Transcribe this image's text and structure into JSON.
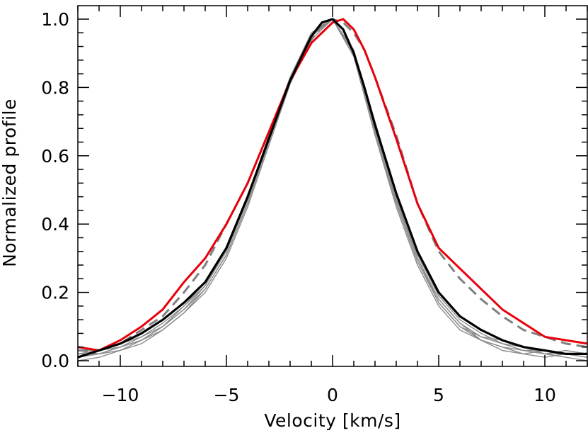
{
  "chart_data": {
    "type": "line",
    "xlabel": "Velocity [km/s]",
    "ylabel": "Normalized profile",
    "xlim": [
      -12,
      12
    ],
    "ylim": [
      0,
      1
    ],
    "x_ticks": [
      -10,
      -5,
      0,
      5,
      10
    ],
    "x_tick_labels": [
      "−10",
      "−5",
      "0",
      "5",
      "10"
    ],
    "y_ticks": [
      0,
      0.2,
      0.4,
      0.6,
      0.8,
      1.0
    ],
    "y_tick_labels": [
      "0.0",
      "0.2",
      "0.4",
      "0.6",
      "0.8",
      "1.0"
    ],
    "grid": false,
    "legend": "none",
    "colors": {
      "red": "#e8000b",
      "black": "#000000",
      "gray": "#8c8c8c",
      "dashed": "#808080"
    },
    "series": [
      {
        "style": "red-solid",
        "x": [
          -12,
          -11,
          -10,
          -9,
          -8,
          -7,
          -6,
          -5,
          -4,
          -3,
          -2,
          -1,
          -0.5,
          0,
          0.5,
          1,
          1.5,
          2,
          3,
          4,
          5,
          6,
          7,
          8,
          9,
          10,
          11,
          12
        ],
        "y": [
          0.04,
          0.03,
          0.06,
          0.1,
          0.15,
          0.23,
          0.3,
          0.4,
          0.52,
          0.67,
          0.82,
          0.93,
          0.96,
          0.99,
          1.0,
          0.97,
          0.91,
          0.83,
          0.65,
          0.46,
          0.33,
          0.27,
          0.21,
          0.15,
          0.11,
          0.07,
          0.06,
          0.05
        ]
      },
      {
        "style": "gray-dashed",
        "x": [
          -12,
          -11,
          -10,
          -9,
          -8,
          -7,
          -6,
          -5,
          -4,
          -3,
          -2,
          -1,
          -0.5,
          0,
          0.5,
          1,
          1.5,
          2,
          3,
          4,
          5,
          6,
          7,
          8,
          9,
          10,
          11,
          12
        ],
        "y": [
          0.03,
          0.03,
          0.05,
          0.09,
          0.13,
          0.2,
          0.28,
          0.4,
          0.52,
          0.67,
          0.82,
          0.94,
          0.98,
          1.0,
          0.99,
          0.96,
          0.91,
          0.83,
          0.66,
          0.46,
          0.32,
          0.24,
          0.18,
          0.13,
          0.09,
          0.07,
          0.05,
          0.04
        ]
      },
      {
        "style": "black-solid",
        "x": [
          -12,
          -11,
          -10,
          -9,
          -8,
          -7,
          -6,
          -5,
          -4,
          -3,
          -2,
          -1,
          -0.5,
          0,
          0.5,
          1,
          1.5,
          2,
          3,
          4,
          5,
          6,
          7,
          8,
          9,
          10,
          11,
          12
        ],
        "y": [
          0.01,
          0.03,
          0.05,
          0.08,
          0.12,
          0.17,
          0.23,
          0.33,
          0.48,
          0.65,
          0.82,
          0.95,
          0.99,
          1.0,
          0.97,
          0.9,
          0.8,
          0.69,
          0.49,
          0.32,
          0.2,
          0.13,
          0.09,
          0.06,
          0.04,
          0.03,
          0.02,
          0.02
        ]
      },
      {
        "style": "gray-thin",
        "x": [
          -12,
          -11,
          -10,
          -9,
          -8,
          -7,
          -6,
          -5,
          -4,
          -3,
          -2,
          -1,
          0,
          1,
          2,
          3,
          4,
          5,
          6,
          7,
          8,
          9,
          10,
          11,
          12
        ],
        "y": [
          0.02,
          0.02,
          0.04,
          0.06,
          0.1,
          0.15,
          0.21,
          0.31,
          0.46,
          0.64,
          0.82,
          0.95,
          1.0,
          0.9,
          0.68,
          0.47,
          0.3,
          0.18,
          0.11,
          0.07,
          0.05,
          0.03,
          0.02,
          0.02,
          0.01
        ]
      },
      {
        "style": "gray-thin",
        "x": [
          -12,
          -11,
          -10,
          -9,
          -8,
          -7,
          -6,
          -5,
          -4,
          -3,
          -2,
          -1,
          0,
          1,
          2,
          3,
          4,
          5,
          6,
          7,
          8,
          9,
          10,
          11,
          12
        ],
        "y": [
          0.03,
          0.03,
          0.05,
          0.07,
          0.11,
          0.16,
          0.22,
          0.32,
          0.47,
          0.65,
          0.83,
          0.96,
          1.0,
          0.9,
          0.67,
          0.46,
          0.29,
          0.17,
          0.1,
          0.06,
          0.04,
          0.03,
          0.03,
          0.02,
          0.02
        ]
      },
      {
        "style": "gray-thin",
        "x": [
          -12,
          -11,
          -10,
          -9,
          -8,
          -7,
          -6,
          -5,
          -4,
          -3,
          -2,
          -1,
          0,
          1,
          2,
          3,
          4,
          5,
          6,
          7,
          8,
          9,
          10,
          11,
          12
        ],
        "y": [
          0.0,
          0.01,
          0.03,
          0.05,
          0.09,
          0.14,
          0.2,
          0.3,
          0.45,
          0.63,
          0.81,
          0.94,
          1.0,
          0.91,
          0.7,
          0.49,
          0.31,
          0.19,
          0.12,
          0.08,
          0.05,
          0.04,
          0.02,
          0.01,
          0.0
        ]
      },
      {
        "style": "gray-thin",
        "x": [
          -12,
          -11,
          -10,
          -9,
          -8,
          -7,
          -6,
          -5,
          -4,
          -3,
          -2,
          -1,
          0,
          1,
          2,
          3,
          4,
          5,
          6,
          7,
          8,
          9,
          10,
          11,
          12
        ],
        "y": [
          0.02,
          0.03,
          0.04,
          0.07,
          0.1,
          0.15,
          0.22,
          0.33,
          0.48,
          0.66,
          0.83,
          0.95,
          1.0,
          0.89,
          0.66,
          0.45,
          0.28,
          0.16,
          0.09,
          0.06,
          0.04,
          0.02,
          0.03,
          0.02,
          0.01
        ]
      },
      {
        "style": "gray-thin",
        "x": [
          -12,
          -11,
          -10,
          -9,
          -8,
          -7,
          -6,
          -5,
          -4,
          -3,
          -2,
          -1,
          0,
          1,
          2,
          3,
          4,
          5,
          6,
          7,
          8,
          9,
          10,
          11,
          12
        ],
        "y": [
          0.03,
          0.02,
          0.03,
          0.06,
          0.09,
          0.14,
          0.21,
          0.31,
          0.46,
          0.64,
          0.82,
          0.95,
          1.0,
          0.9,
          0.69,
          0.48,
          0.3,
          0.17,
          0.1,
          0.07,
          0.06,
          0.04,
          0.02,
          0.03,
          0.02
        ]
      },
      {
        "style": "gray-thin",
        "x": [
          -12,
          -11,
          -10,
          -9,
          -8,
          -7,
          -6,
          -5,
          -4,
          -3,
          -2,
          -1,
          0,
          1,
          2,
          3,
          4,
          5,
          6,
          7,
          8,
          9,
          10,
          11,
          12
        ],
        "y": [
          0.01,
          0.02,
          0.04,
          0.06,
          0.1,
          0.16,
          0.23,
          0.33,
          0.47,
          0.65,
          0.82,
          0.95,
          1.0,
          0.9,
          0.68,
          0.47,
          0.3,
          0.18,
          0.11,
          0.06,
          0.03,
          0.02,
          0.01,
          0.02,
          0.01
        ]
      }
    ]
  }
}
